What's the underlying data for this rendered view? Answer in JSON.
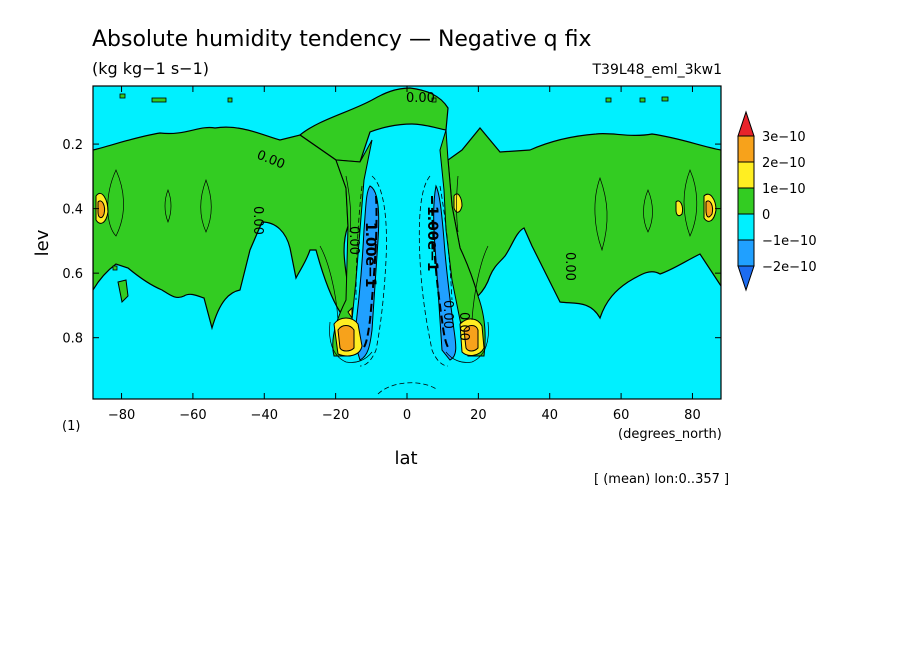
{
  "chart_data": {
    "type": "heatmap",
    "title": "Absolute humidity tendency — Negative q fix",
    "units": "(kg kg−1 s−1)",
    "run_label": "T39L48_eml_3kw1",
    "xlabel": "lat",
    "x_units": "(degrees_north)",
    "ylabel": "lev",
    "y_units": "(1)",
    "averaging_note": "[ (mean) lon:0..357 ]",
    "xlim": [
      -88,
      88
    ],
    "ylim": [
      0.99,
      0.02
    ],
    "x_ticks": [
      -80,
      -60,
      -40,
      -20,
      0,
      20,
      40,
      60,
      80
    ],
    "x_tick_labels": [
      "−80",
      "−60",
      "−40",
      "−20",
      "0",
      "20",
      "40",
      "60",
      "80"
    ],
    "y_ticks": [
      0.2,
      0.4,
      0.6,
      0.8
    ],
    "y_tick_labels": [
      "0.2",
      "0.4",
      "0.6",
      "0.8"
    ],
    "colorbar": {
      "levels": [
        "3e−10",
        "2e−10",
        "1e−10",
        "0",
        "−1e−10",
        "−2e−10"
      ],
      "colors": [
        "#e8232b",
        "#f7a21b",
        "#ffee22",
        "#33cc22",
        "#00f0ff",
        "#20a0ff",
        "#1c6cf0"
      ]
    },
    "contour_labels": [
      "0.00",
      "0.00",
      "0.00",
      "0.00",
      "0.00",
      "1.00e−1",
      "1.00e−1",
      "0.00",
      "0.00"
    ],
    "grid": false,
    "legend_position": "right"
  }
}
